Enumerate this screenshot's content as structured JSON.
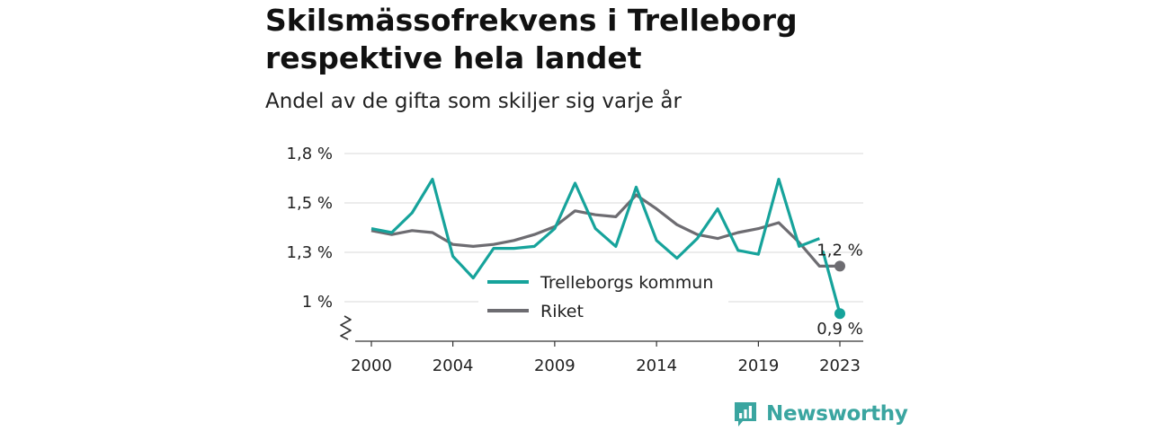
{
  "header": {
    "title_line1": "Skilsmässofrekvens i Trelleborg",
    "title_line2": "respektive hela landet",
    "subtitle": "Andel av de gifta som skiljer sig varje år"
  },
  "brand": {
    "name": "Newsworthy",
    "color": "#3aa5a0"
  },
  "chart_data": {
    "type": "line",
    "x": [
      2000,
      2001,
      2002,
      2003,
      2004,
      2005,
      2006,
      2007,
      2008,
      2009,
      2010,
      2011,
      2012,
      2013,
      2014,
      2015,
      2016,
      2017,
      2018,
      2019,
      2020,
      2021,
      2022,
      2023
    ],
    "x_ticks": [
      2000,
      2004,
      2009,
      2014,
      2019,
      2023
    ],
    "y_ticks": [
      1.0,
      1.25,
      1.5,
      1.75
    ],
    "y_tick_labels": [
      "1 %",
      "1,3 %",
      "1,5 %",
      "1,8 %"
    ],
    "ylim": [
      0.8,
      1.75
    ],
    "axis_break": true,
    "grid": true,
    "legend_position": "center",
    "series": [
      {
        "name": "Trelleborgs kommun",
        "color": "#16a39b",
        "values": [
          1.37,
          1.35,
          1.45,
          1.62,
          1.23,
          1.12,
          1.27,
          1.27,
          1.28,
          1.37,
          1.6,
          1.37,
          1.28,
          1.58,
          1.31,
          1.22,
          1.32,
          1.47,
          1.26,
          1.24,
          1.62,
          1.28,
          1.32,
          0.94
        ],
        "end_label": "0,9 %",
        "gap_before_last": true
      },
      {
        "name": "Riket",
        "color": "#6d6c71",
        "values": [
          1.36,
          1.34,
          1.36,
          1.35,
          1.29,
          1.28,
          1.29,
          1.31,
          1.34,
          1.38,
          1.46,
          1.44,
          1.43,
          1.54,
          1.47,
          1.39,
          1.34,
          1.32,
          1.35,
          1.37,
          1.4,
          1.3,
          1.18,
          1.18
        ],
        "end_label": "1,2 %",
        "gap_before_last": false
      }
    ]
  }
}
